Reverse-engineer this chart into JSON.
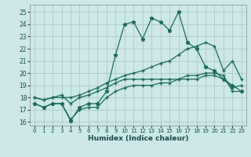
{
  "xlabel": "Humidex (Indice chaleur)",
  "background_color": "#cce8e8",
  "grid_color": "#b0cccc",
  "line_color": "#1a6a5a",
  "xlim": [
    -0.5,
    23.5
  ],
  "ylim": [
    15.7,
    25.6
  ],
  "yticks": [
    16,
    17,
    18,
    19,
    20,
    21,
    22,
    23,
    24,
    25
  ],
  "xticks": [
    0,
    1,
    2,
    3,
    4,
    5,
    6,
    7,
    8,
    9,
    10,
    11,
    12,
    13,
    14,
    15,
    16,
    17,
    18,
    19,
    20,
    21,
    22,
    23
  ],
  "line_peaked_x": [
    0,
    1,
    2,
    3,
    4,
    5,
    6,
    7,
    8,
    9,
    10,
    11,
    12,
    13,
    14,
    15,
    16,
    17,
    18,
    19,
    20,
    21,
    22,
    23
  ],
  "line_peaked_y": [
    17.5,
    17.2,
    17.5,
    17.5,
    16.1,
    17.2,
    17.5,
    17.5,
    18.5,
    21.5,
    24.0,
    24.2,
    22.8,
    24.5,
    24.2,
    23.5,
    25.0,
    22.5,
    22.0,
    20.5,
    20.2,
    19.5,
    19.0,
    18.5
  ],
  "line_grad_x": [
    0,
    1,
    2,
    3,
    4,
    5,
    6,
    7,
    8,
    9,
    10,
    11,
    12,
    13,
    14,
    15,
    16,
    17,
    18,
    19,
    20,
    21,
    22,
    23
  ],
  "line_grad_y": [
    18.0,
    17.8,
    18.0,
    18.0,
    18.0,
    18.2,
    18.5,
    18.8,
    19.2,
    19.5,
    19.8,
    20.0,
    20.2,
    20.5,
    20.8,
    21.0,
    21.5,
    22.0,
    22.2,
    22.5,
    22.2,
    20.2,
    21.0,
    19.5
  ],
  "line_flat1_x": [
    0,
    1,
    2,
    3,
    4,
    5,
    6,
    7,
    8,
    9,
    10,
    11,
    12,
    13,
    14,
    15,
    16,
    17,
    18,
    19,
    20,
    21,
    22,
    23
  ],
  "line_flat1_y": [
    18.0,
    17.8,
    18.0,
    18.2,
    17.5,
    18.0,
    18.2,
    18.5,
    18.8,
    19.2,
    19.5,
    19.5,
    19.5,
    19.5,
    19.5,
    19.5,
    19.5,
    19.8,
    19.8,
    20.0,
    20.0,
    19.8,
    18.5,
    18.5
  ],
  "line_flat2_x": [
    0,
    1,
    2,
    3,
    4,
    5,
    6,
    7,
    8,
    9,
    10,
    11,
    12,
    13,
    14,
    15,
    16,
    17,
    18,
    19,
    20,
    21,
    22,
    23
  ],
  "line_flat2_y": [
    17.5,
    17.2,
    17.5,
    17.5,
    16.2,
    17.0,
    17.2,
    17.2,
    18.0,
    18.5,
    18.8,
    19.0,
    19.0,
    19.0,
    19.2,
    19.2,
    19.5,
    19.5,
    19.5,
    19.8,
    19.8,
    19.5,
    18.8,
    19.0
  ]
}
